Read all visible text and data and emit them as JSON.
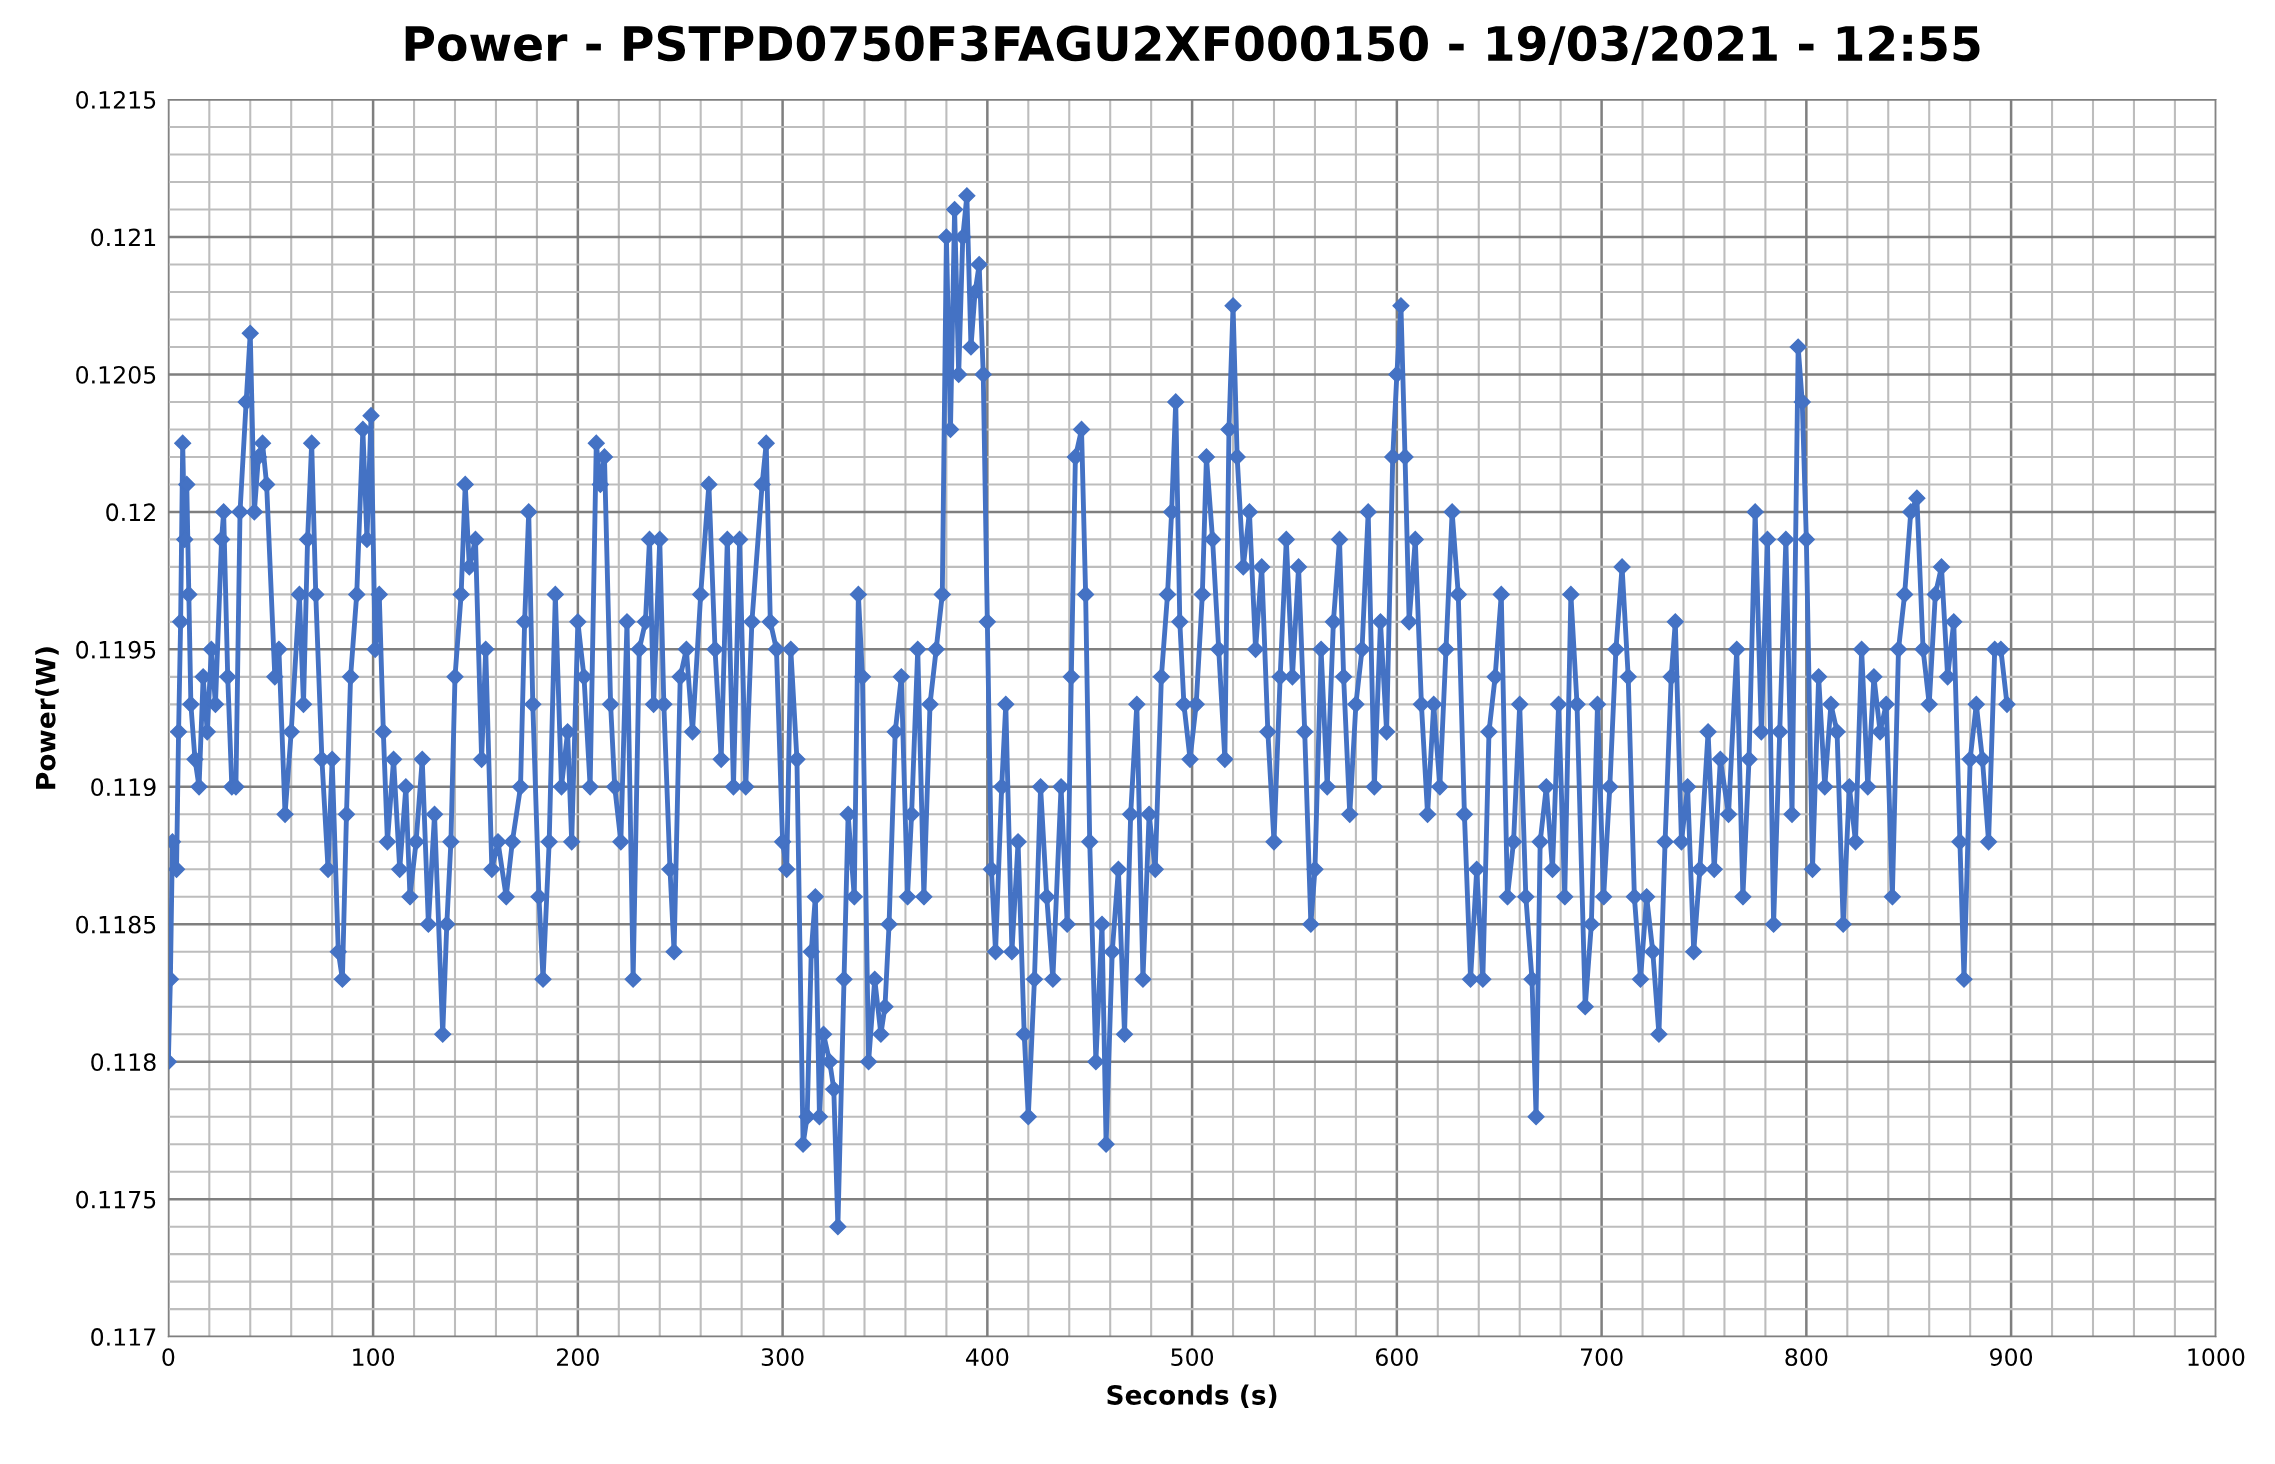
{
  "chart_data": {
    "type": "line",
    "title": "Power - PSTPD0750F3FAGU2XF000150 - 19/03/2021 - 12:55",
    "xlabel": "Seconds (s)",
    "ylabel": "Power(W)",
    "xlim": [
      0,
      1000
    ],
    "xticks": [
      0,
      100,
      200,
      300,
      400,
      500,
      600,
      700,
      800,
      900,
      1000
    ],
    "ylim": [
      0.117,
      0.1215
    ],
    "yticks": [
      0.117,
      0.1175,
      0.118,
      0.1185,
      0.119,
      0.1195,
      0.12,
      0.1205,
      0.121,
      0.1215
    ],
    "grid": true,
    "marker": "diamond",
    "line_style": "solid",
    "legend": false,
    "series": [
      {
        "color": "#4472c4",
        "x": [
          0,
          1,
          2,
          4,
          5,
          6,
          7,
          8,
          9,
          10,
          11,
          13,
          15,
          17,
          19,
          21,
          23,
          26,
          27,
          29,
          31,
          33,
          35,
          38,
          40,
          42,
          44,
          46,
          48,
          52,
          54,
          57,
          60,
          64,
          66,
          68,
          70,
          72,
          75,
          78,
          80,
          83,
          85,
          87,
          89,
          92,
          95,
          97,
          99,
          101,
          103,
          105,
          107,
          110,
          113,
          116,
          118,
          121,
          124,
          127,
          130,
          134,
          136,
          138,
          140,
          143,
          145,
          147,
          150,
          153,
          155,
          158,
          161,
          165,
          168,
          172,
          174,
          176,
          178,
          181,
          183,
          186,
          189,
          192,
          195,
          197,
          200,
          203,
          206,
          209,
          211,
          213,
          216,
          218,
          221,
          224,
          227,
          230,
          233,
          235,
          237,
          240,
          242,
          245,
          247,
          250,
          253,
          256,
          260,
          264,
          267,
          270,
          273,
          276,
          279,
          282,
          285,
          290,
          292,
          294,
          297,
          300,
          302,
          304,
          307,
          310,
          312,
          314,
          316,
          318,
          320,
          323,
          325,
          327,
          330,
          332,
          335,
          337,
          339,
          342,
          345,
          348,
          350,
          352,
          355,
          358,
          361,
          363,
          366,
          369,
          372,
          375,
          378,
          380,
          382,
          384,
          386,
          388,
          390,
          392,
          394,
          396,
          398,
          400,
          402,
          404,
          407,
          409,
          412,
          415,
          418,
          420,
          423,
          426,
          429,
          432,
          436,
          439,
          441,
          443,
          446,
          448,
          450,
          453,
          456,
          458,
          461,
          464,
          467,
          470,
          473,
          476,
          479,
          482,
          485,
          488,
          490,
          492,
          494,
          496,
          499,
          502,
          505,
          507,
          510,
          513,
          516,
          518,
          520,
          522,
          525,
          528,
          531,
          534,
          537,
          540,
          543,
          546,
          549,
          552,
          555,
          558,
          560,
          563,
          566,
          569,
          572,
          574,
          577,
          580,
          583,
          586,
          589,
          592,
          595,
          598,
          600,
          602,
          604,
          606,
          609,
          612,
          615,
          618,
          621,
          624,
          627,
          630,
          633,
          636,
          639,
          642,
          645,
          648,
          651,
          654,
          657,
          660,
          663,
          666,
          668,
          670,
          673,
          676,
          679,
          682,
          685,
          688,
          692,
          695,
          698,
          701,
          704,
          707,
          710,
          713,
          716,
          719,
          722,
          725,
          728,
          731,
          734,
          736,
          739,
          742,
          745,
          748,
          752,
          755,
          758,
          762,
          766,
          769,
          772,
          775,
          778,
          781,
          784,
          787,
          790,
          793,
          796,
          798,
          800,
          803,
          806,
          809,
          812,
          815,
          818,
          821,
          824,
          827,
          830,
          833,
          836,
          839,
          842,
          845,
          848,
          851,
          854,
          857,
          860,
          863,
          866,
          869,
          872,
          875,
          877,
          880,
          883,
          886,
          889,
          892,
          895,
          898
        ],
        "values": [
          0.118,
          0.1183,
          0.1188,
          0.1187,
          0.1192,
          0.1196,
          0.12025,
          0.1199,
          0.1201,
          0.1197,
          0.1193,
          0.1191,
          0.119,
          0.1194,
          0.1192,
          0.1195,
          0.1193,
          0.1199,
          0.12,
          0.1194,
          0.119,
          0.119,
          0.12,
          0.1204,
          0.12065,
          0.12,
          0.1202,
          0.12025,
          0.1201,
          0.1194,
          0.1195,
          0.1189,
          0.1192,
          0.1197,
          0.1193,
          0.1199,
          0.12025,
          0.1197,
          0.1191,
          0.1187,
          0.1191,
          0.1184,
          0.1183,
          0.1189,
          0.1194,
          0.1197,
          0.1203,
          0.1199,
          0.12035,
          0.1195,
          0.1197,
          0.1192,
          0.1188,
          0.1191,
          0.1187,
          0.119,
          0.1186,
          0.1188,
          0.1191,
          0.1185,
          0.1189,
          0.1181,
          0.1185,
          0.1188,
          0.1194,
          0.1197,
          0.1201,
          0.1198,
          0.1199,
          0.1191,
          0.1195,
          0.1187,
          0.1188,
          0.1186,
          0.1188,
          0.119,
          0.1196,
          0.12,
          0.1193,
          0.1186,
          0.1183,
          0.1188,
          0.1197,
          0.119,
          0.1192,
          0.1188,
          0.1196,
          0.1194,
          0.119,
          0.12025,
          0.1201,
          0.1202,
          0.1193,
          0.119,
          0.1188,
          0.1196,
          0.1183,
          0.1195,
          0.1196,
          0.1199,
          0.1193,
          0.1199,
          0.1193,
          0.1187,
          0.1184,
          0.1194,
          0.1195,
          0.1192,
          0.1197,
          0.1201,
          0.1195,
          0.1191,
          0.1199,
          0.119,
          0.1199,
          0.119,
          0.1196,
          0.1201,
          0.12025,
          0.1196,
          0.1195,
          0.1188,
          0.1187,
          0.1195,
          0.1191,
          0.1177,
          0.1178,
          0.1184,
          0.1186,
          0.1178,
          0.1181,
          0.118,
          0.1179,
          0.1174,
          0.1183,
          0.1189,
          0.1186,
          0.1197,
          0.1194,
          0.118,
          0.1183,
          0.1181,
          0.1182,
          0.1185,
          0.1192,
          0.1194,
          0.1186,
          0.1189,
          0.1195,
          0.1186,
          0.1193,
          0.1195,
          0.1197,
          0.121,
          0.1203,
          0.1211,
          0.1205,
          0.121,
          0.12115,
          0.1206,
          0.1208,
          0.1209,
          0.1205,
          0.1196,
          0.1187,
          0.1184,
          0.119,
          0.1193,
          0.1184,
          0.1188,
          0.1181,
          0.1178,
          0.1183,
          0.119,
          0.1186,
          0.1183,
          0.119,
          0.1185,
          0.1194,
          0.1202,
          0.1203,
          0.1197,
          0.1188,
          0.118,
          0.1185,
          0.1177,
          0.1184,
          0.1187,
          0.1181,
          0.1189,
          0.1193,
          0.1183,
          0.1189,
          0.1187,
          0.1194,
          0.1197,
          0.12,
          0.1204,
          0.1196,
          0.1193,
          0.1191,
          0.1193,
          0.1197,
          0.1202,
          0.1199,
          0.1195,
          0.1191,
          0.1203,
          0.12075,
          0.1202,
          0.1198,
          0.12,
          0.1195,
          0.1198,
          0.1192,
          0.1188,
          0.1194,
          0.1199,
          0.1194,
          0.1198,
          0.1192,
          0.1185,
          0.1187,
          0.1195,
          0.119,
          0.1196,
          0.1199,
          0.1194,
          0.1189,
          0.1193,
          0.1195,
          0.12,
          0.119,
          0.1196,
          0.1192,
          0.1202,
          0.1205,
          0.12075,
          0.1202,
          0.1196,
          0.1199,
          0.1193,
          0.1189,
          0.1193,
          0.119,
          0.1195,
          0.12,
          0.1197,
          0.1189,
          0.1183,
          0.1187,
          0.1183,
          0.1192,
          0.1194,
          0.1197,
          0.1186,
          0.1188,
          0.1193,
          0.1186,
          0.1183,
          0.1178,
          0.1188,
          0.119,
          0.1187,
          0.1193,
          0.1186,
          0.1197,
          0.1193,
          0.1182,
          0.1185,
          0.1193,
          0.1186,
          0.119,
          0.1195,
          0.1198,
          0.1194,
          0.1186,
          0.1183,
          0.1186,
          0.1184,
          0.1181,
          0.1188,
          0.1194,
          0.1196,
          0.1188,
          0.119,
          0.1184,
          0.1187,
          0.1192,
          0.1187,
          0.1191,
          0.1189,
          0.1195,
          0.1186,
          0.1191,
          0.12,
          0.1192,
          0.1199,
          0.1185,
          0.1192,
          0.1199,
          0.1189,
          0.1206,
          0.1204,
          0.1199,
          0.1187,
          0.1194,
          0.119,
          0.1193,
          0.1192,
          0.1185,
          0.119,
          0.1188,
          0.1195,
          0.119,
          0.1194,
          0.1192,
          0.1193,
          0.1186,
          0.1195,
          0.1197,
          0.12,
          0.12005,
          0.1195,
          0.1193,
          0.1197,
          0.1198,
          0.1194,
          0.1196,
          0.1188,
          0.1183,
          0.1191,
          0.1193,
          0.1191,
          0.1188,
          0.1195,
          0.1195,
          0.1193
        ]
      }
    ]
  }
}
